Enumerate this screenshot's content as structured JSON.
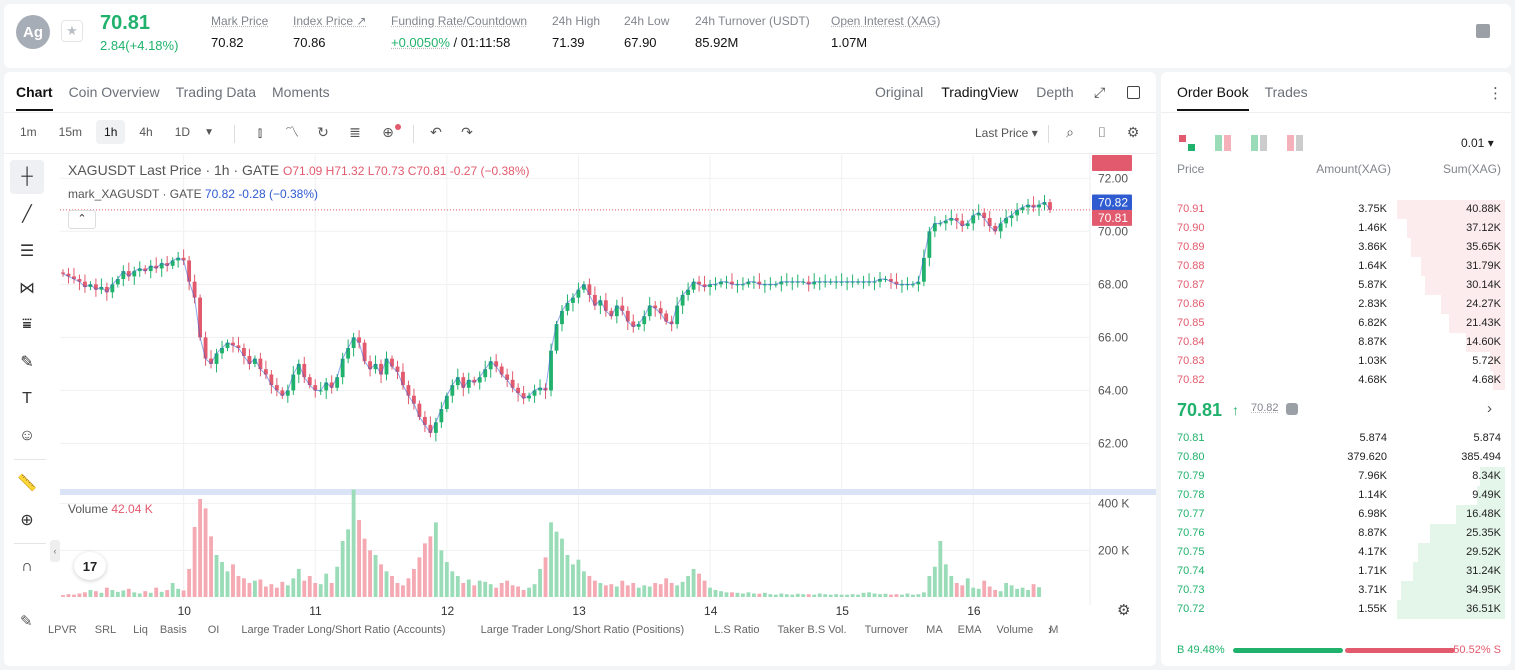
{
  "header": {
    "coin_symbol": "Ag",
    "last_price": "70.81",
    "price_change": "2.84(+4.18%)",
    "stats": [
      {
        "label": "Mark Price",
        "value": "70.82"
      },
      {
        "label": "Index Price ↗",
        "value": "70.86"
      },
      {
        "label": "Funding Rate/Countdown",
        "value_rate": "+0.0050%",
        "value_countdown": " / 01:11:58"
      },
      {
        "label": "24h High",
        "value": "71.39"
      },
      {
        "label": "24h Low",
        "value": "67.90"
      },
      {
        "label": "24h Turnover (USDT)",
        "value": "85.92M"
      },
      {
        "label": "Open Interest (XAG)",
        "value": "1.07M"
      }
    ]
  },
  "chart_tabs": [
    "Chart",
    "Coin Overview",
    "Trading Data",
    "Moments"
  ],
  "chart_views": [
    "Original",
    "TradingView",
    "Depth"
  ],
  "intervals": [
    "1m",
    "15m",
    "1h",
    "4h",
    "1D"
  ],
  "price_source": "Last Price ▾",
  "legend": {
    "symbol_line": "XAGUSDT Last Price · 1h · GATE",
    "ohlc": "O71.09  H71.32  L70.73  C70.81  -0.27 (−0.38%)",
    "mark_label": "mark_XAGUSDT · GATE",
    "mark_values": "70.82  -0.28 (−0.38%)",
    "volume_label": "Volume",
    "volume_value": "42.04 K"
  },
  "price_axis": [
    "72.00",
    "70.00",
    "68.00",
    "66.00",
    "64.00",
    "62.00"
  ],
  "price_tags": {
    "mark": "70.82",
    "last": "70.81"
  },
  "volume_axis": [
    "400 K",
    "200 K"
  ],
  "volume_tag": "42.04 K",
  "time_axis": [
    "10",
    "11",
    "12",
    "13",
    "14",
    "15",
    "16"
  ],
  "tv_logo": "17",
  "indicators": [
    "LPVR",
    "SRL",
    "Liq",
    "Basis",
    "OI",
    "Large Trader Long/Short Ratio (Accounts)",
    "Large Trader Long/Short Ratio (Positions)",
    "L.S Ratio",
    "Taker B.S Vol.",
    "Turnover",
    "MA",
    "EMA",
    "Volume",
    "MACD"
  ],
  "orderbook": {
    "tabs": [
      "Order Book",
      "Trades"
    ],
    "precision": "0.01 ▾",
    "headers": {
      "price": "Price",
      "amount": "Amount(XAG)",
      "sum": "Sum(XAG)"
    },
    "asks": [
      {
        "price": "70.91",
        "amount": "3.75K",
        "sum": "40.88K",
        "depth": 1.0
      },
      {
        "price": "70.90",
        "amount": "1.46K",
        "sum": "37.12K",
        "depth": 0.91
      },
      {
        "price": "70.89",
        "amount": "3.86K",
        "sum": "35.65K",
        "depth": 0.87
      },
      {
        "price": "70.88",
        "amount": "1.64K",
        "sum": "31.79K",
        "depth": 0.78
      },
      {
        "price": "70.87",
        "amount": "5.87K",
        "sum": "30.14K",
        "depth": 0.74
      },
      {
        "price": "70.86",
        "amount": "2.83K",
        "sum": "24.27K",
        "depth": 0.59
      },
      {
        "price": "70.85",
        "amount": "6.82K",
        "sum": "21.43K",
        "depth": 0.52
      },
      {
        "price": "70.84",
        "amount": "8.87K",
        "sum": "14.60K",
        "depth": 0.36
      },
      {
        "price": "70.83",
        "amount": "1.03K",
        "sum": "5.72K",
        "depth": 0.14
      },
      {
        "price": "70.82",
        "amount": "4.68K",
        "sum": "4.68K",
        "depth": 0.11
      }
    ],
    "mid": {
      "price": "70.81",
      "arrow": "🡑",
      "mark": "70.82",
      "chevron": "›"
    },
    "bids": [
      {
        "price": "70.81",
        "amount": "5.874",
        "sum": "5.874",
        "depth": 0.0
      },
      {
        "price": "70.80",
        "amount": "379.620",
        "sum": "385.494",
        "depth": 0.0
      },
      {
        "price": "70.79",
        "amount": "7.96K",
        "sum": "8.34K",
        "depth": 0.23
      },
      {
        "price": "70.78",
        "amount": "1.14K",
        "sum": "9.49K",
        "depth": 0.26
      },
      {
        "price": "70.77",
        "amount": "6.98K",
        "sum": "16.48K",
        "depth": 0.45
      },
      {
        "price": "70.76",
        "amount": "8.87K",
        "sum": "25.35K",
        "depth": 0.69
      },
      {
        "price": "70.75",
        "amount": "4.17K",
        "sum": "29.52K",
        "depth": 0.81
      },
      {
        "price": "70.74",
        "amount": "1.71K",
        "sum": "31.24K",
        "depth": 0.85
      },
      {
        "price": "70.73",
        "amount": "3.71K",
        "sum": "34.95K",
        "depth": 0.96
      },
      {
        "price": "70.72",
        "amount": "1.55K",
        "sum": "36.51K",
        "depth": 1.0
      }
    ],
    "ratio": {
      "buy_label": "B 49.48%",
      "sell_label": "50.52% S",
      "buy_pct": 49.48,
      "sell_pct": 50.52
    }
  },
  "colors": {
    "up": "#20b26c",
    "down": "#e25a6d",
    "mark_line": "#2f5bd1"
  },
  "chart_data": {
    "type": "candlestick",
    "symbol": "XAGUSDT",
    "interval": "1h",
    "ylim": [
      61,
      72.5
    ],
    "volume_ylim": [
      0,
      450000
    ],
    "x_ticks": [
      "10",
      "11",
      "12",
      "13",
      "14",
      "15",
      "16"
    ],
    "closes": [
      68.4,
      68.3,
      68.2,
      68.1,
      67.9,
      68.0,
      67.8,
      67.9,
      67.7,
      68.0,
      68.2,
      68.5,
      68.3,
      68.5,
      68.6,
      68.5,
      68.7,
      68.6,
      68.8,
      68.7,
      68.9,
      69.0,
      68.9,
      68.1,
      67.5,
      66.0,
      65.2,
      65.0,
      65.4,
      65.6,
      65.8,
      65.7,
      65.6,
      65.3,
      65.0,
      65.2,
      64.8,
      64.6,
      64.2,
      64.0,
      63.8,
      64.0,
      64.6,
      65.0,
      64.5,
      64.2,
      64.0,
      64.0,
      64.3,
      64.1,
      64.5,
      65.2,
      65.6,
      66.0,
      65.8,
      65.1,
      64.8,
      65.0,
      64.6,
      65.2,
      64.9,
      64.7,
      64.2,
      63.8,
      63.5,
      63.0,
      62.7,
      62.4,
      62.8,
      63.3,
      63.8,
      64.2,
      64.5,
      64.1,
      64.4,
      64.3,
      64.5,
      64.8,
      65.1,
      64.9,
      64.6,
      64.4,
      64.1,
      63.9,
      63.7,
      63.8,
      64.0,
      64.1,
      64.0,
      65.5,
      66.5,
      67.0,
      67.3,
      67.5,
      67.8,
      68.0,
      67.6,
      67.2,
      67.4,
      67.0,
      66.8,
      67.2,
      67.0,
      66.6,
      66.4,
      66.5,
      66.8,
      67.2,
      67.1,
      66.9,
      66.6,
      66.5,
      67.2,
      67.6,
      67.8,
      68.1,
      68.0,
      67.9,
      68.0,
      68.0,
      68.1,
      68.1,
      68.0,
      68.0,
      68.0,
      68.1,
      68.1,
      68.0,
      68.0,
      68.0,
      68.0,
      68.1,
      68.1,
      68.1,
      68.1,
      68.1,
      68.0,
      68.1,
      68.1,
      68.1,
      68.1,
      68.1,
      68.1,
      68.1,
      68.1,
      68.1,
      68.1,
      68.1,
      68.1,
      68.2,
      68.2,
      68.1,
      68.0,
      68.0,
      68.0,
      68.0,
      68.1,
      69.0,
      70.0,
      70.3,
      70.3,
      70.4,
      70.5,
      70.4,
      70.2,
      70.3,
      70.6,
      70.7,
      70.5,
      70.2,
      70.0,
      70.3,
      70.5,
      70.6,
      70.8,
      70.9,
      71.0,
      70.9,
      71.0,
      71.1,
      70.81
    ],
    "volumes": [
      8000,
      12000,
      10000,
      15000,
      20000,
      30000,
      25000,
      18000,
      40000,
      30000,
      22000,
      28000,
      35000,
      20000,
      15000,
      25000,
      18000,
      40000,
      22000,
      30000,
      60000,
      35000,
      28000,
      120000,
      300000,
      420000,
      380000,
      260000,
      180000,
      150000,
      110000,
      140000,
      90000,
      80000,
      60000,
      70000,
      75000,
      45000,
      55000,
      40000,
      65000,
      50000,
      80000,
      120000,
      70000,
      90000,
      60000,
      55000,
      100000,
      60000,
      130000,
      240000,
      290000,
      460000,
      330000,
      250000,
      200000,
      180000,
      140000,
      110000,
      90000,
      60000,
      50000,
      80000,
      120000,
      170000,
      230000,
      260000,
      320000,
      200000,
      150000,
      110000,
      90000,
      60000,
      75000,
      50000,
      70000,
      65000,
      55000,
      40000,
      60000,
      70000,
      50000,
      45000,
      30000,
      40000,
      55000,
      120000,
      170000,
      320000,
      280000,
      250000,
      180000,
      140000,
      160000,
      110000,
      90000,
      70000,
      60000,
      50000,
      55000,
      45000,
      70000,
      50000,
      60000,
      40000,
      50000,
      45000,
      60000,
      55000,
      80000,
      60000,
      50000,
      65000,
      90000,
      120000,
      100000,
      70000,
      40000,
      30000,
      25000,
      20000,
      20000,
      18000,
      15000,
      20000,
      15000,
      14000,
      18000,
      12000,
      10000,
      15000,
      12000,
      10000,
      14000,
      12000,
      12000,
      10000,
      15000,
      12000,
      10000,
      12000,
      10000,
      10000,
      12000,
      10000,
      18000,
      20000,
      15000,
      12000,
      14000,
      10000,
      12000,
      10000,
      15000,
      10000,
      12000,
      20000,
      90000,
      130000,
      240000,
      140000,
      90000,
      60000,
      50000,
      80000,
      40000,
      35000,
      70000,
      45000,
      30000,
      25000,
      60000,
      50000,
      35000,
      40000,
      30000,
      55000,
      42040
    ]
  }
}
